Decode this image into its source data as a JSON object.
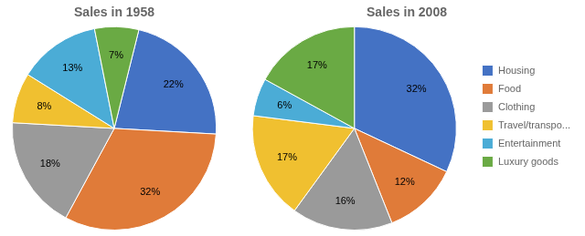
{
  "chart_data": [
    {
      "type": "pie",
      "title": "Sales in 1958",
      "categories": [
        "Housing",
        "Food",
        "Clothing",
        "Travel/transpo...",
        "Entertainment",
        "Luxury goods"
      ],
      "values": [
        22,
        32,
        18,
        8,
        13,
        7
      ],
      "value_labels": [
        "22%",
        "32%",
        "18%",
        "8%",
        "13%",
        "7%"
      ],
      "colors": [
        "#4472c4",
        "#e07b39",
        "#9a9a9a",
        "#f0c030",
        "#4bacd6",
        "#6aaa44"
      ],
      "data_labels": true
    },
    {
      "type": "pie",
      "title": "Sales in 2008",
      "categories": [
        "Housing",
        "Food",
        "Clothing",
        "Travel/transpo...",
        "Entertainment",
        "Luxury goods"
      ],
      "values": [
        32,
        12,
        16,
        17,
        6,
        17
      ],
      "value_labels": [
        "32%",
        "12%",
        "16%",
        "17%",
        "6%",
        "17%"
      ],
      "colors": [
        "#4472c4",
        "#e07b39",
        "#9a9a9a",
        "#f0c030",
        "#4bacd6",
        "#6aaa44"
      ],
      "data_labels": true,
      "legend": "right"
    }
  ]
}
